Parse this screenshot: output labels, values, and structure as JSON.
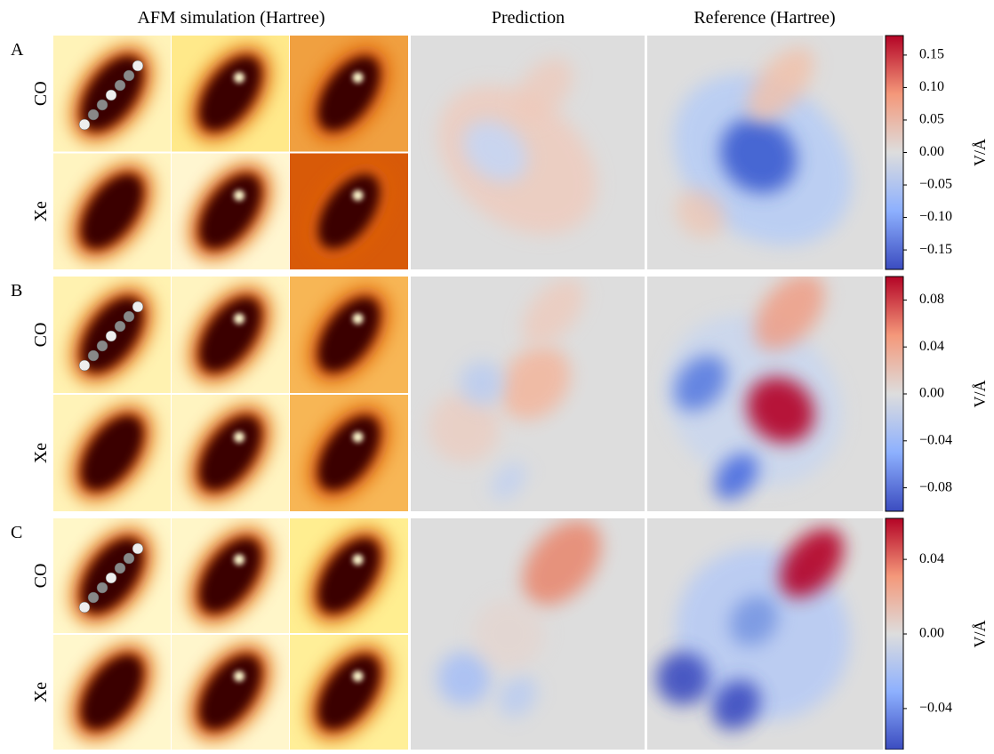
{
  "column_headers": [
    "AFM simulation (Hartree)",
    "Prediction",
    "Reference (Hartree)"
  ],
  "rows": [
    {
      "letter": "A",
      "probes": [
        "CO",
        "Xe"
      ],
      "colorbar": {
        "label": "V/Å",
        "lim": [
          -0.18,
          0.18
        ],
        "ticks": [
          0.15,
          {
            "value": 0.1,
            "label": "0.10"
          },
          0.05,
          {
            "value": 0,
            "label": "0.00"
          },
          {
            "value": -0.05,
            "label": "−0.05"
          },
          {
            "value": -0.1,
            "label": "−0.10"
          },
          {
            "value": -0.15,
            "label": "−0.15"
          }
        ]
      }
    },
    {
      "letter": "B",
      "probes": [
        "CO",
        "Xe"
      ],
      "colorbar": {
        "label": "V/Å",
        "lim": [
          -0.1,
          0.1
        ],
        "ticks": [
          0.08,
          0.04,
          {
            "value": 0,
            "label": "0.00"
          },
          {
            "value": -0.04,
            "label": "−0.04"
          },
          {
            "value": -0.08,
            "label": "−0.08"
          }
        ]
      }
    },
    {
      "letter": "C",
      "probes": [
        "CO",
        "Xe"
      ],
      "colorbar": {
        "label": "V/Å",
        "lim": [
          -0.062,
          0.062
        ],
        "ticks": [
          0.04,
          {
            "value": 0,
            "label": "0.00"
          },
          {
            "value": -0.04,
            "label": "−0.04"
          }
        ]
      }
    }
  ]
}
